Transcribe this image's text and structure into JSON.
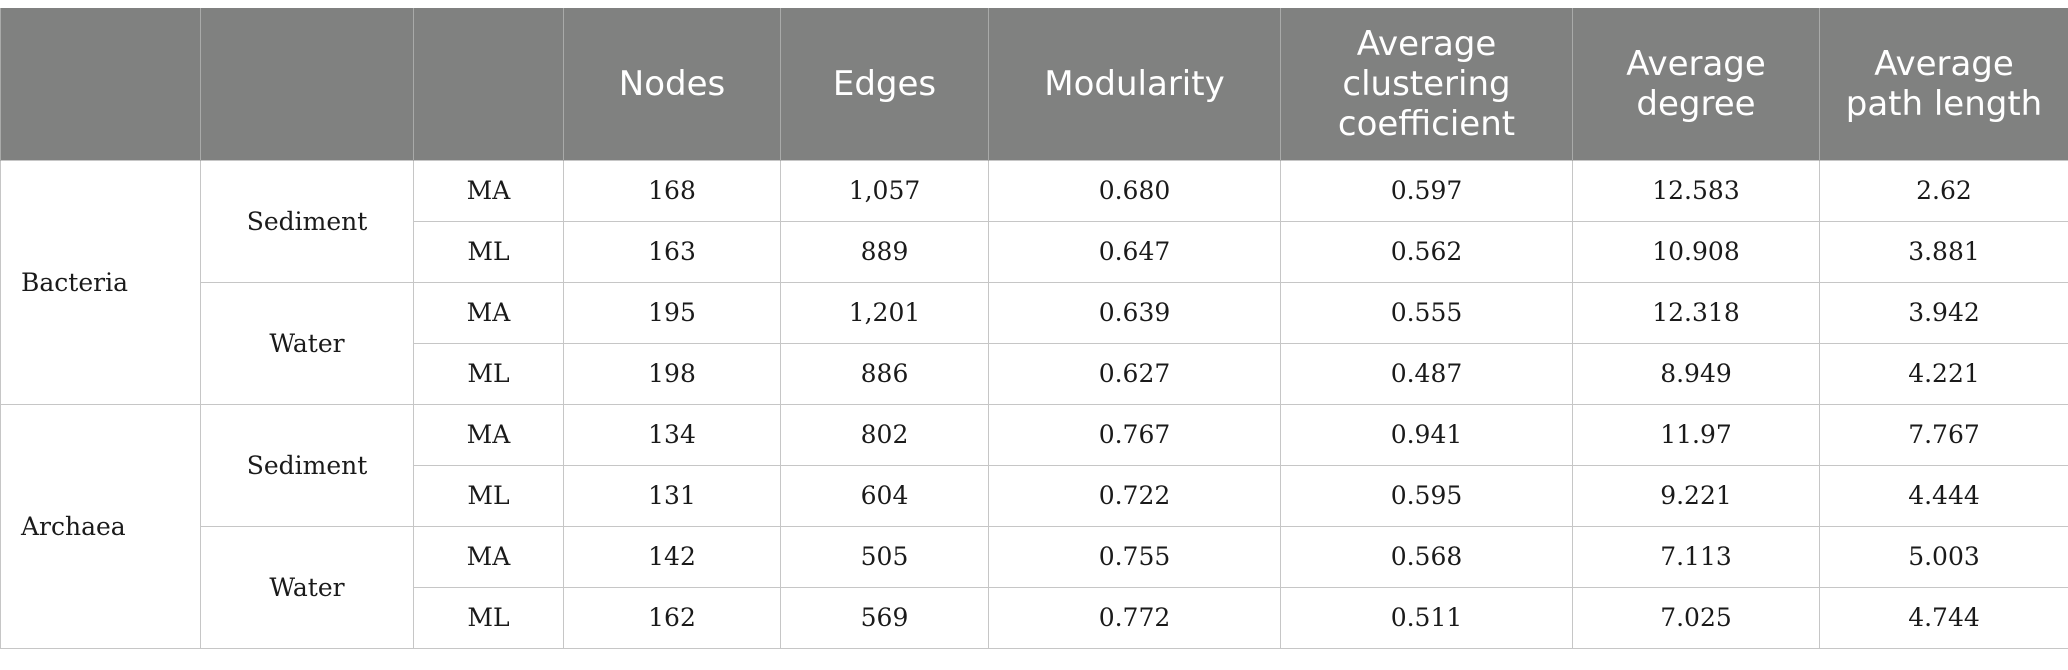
{
  "table": {
    "headers": [
      "",
      "",
      "",
      "Nodes",
      "Edges",
      "Modularity",
      "Average clustering coefficient",
      "Average degree",
      "Average path length"
    ],
    "groups": [
      {
        "domain": "Bacteria",
        "habitats": [
          {
            "habitat": "Sediment",
            "rows": [
              {
                "site": "MA",
                "nodes": "168",
                "edges": "1,057",
                "modularity": "0.680",
                "clustering": "0.597",
                "degree": "12.583",
                "path": "2.62"
              },
              {
                "site": "ML",
                "nodes": "163",
                "edges": "889",
                "modularity": "0.647",
                "clustering": "0.562",
                "degree": "10.908",
                "path": "3.881"
              }
            ]
          },
          {
            "habitat": "Water",
            "rows": [
              {
                "site": "MA",
                "nodes": "195",
                "edges": "1,201",
                "modularity": "0.639",
                "clustering": "0.555",
                "degree": "12.318",
                "path": "3.942"
              },
              {
                "site": "ML",
                "nodes": "198",
                "edges": "886",
                "modularity": "0.627",
                "clustering": "0.487",
                "degree": "8.949",
                "path": "4.221"
              }
            ]
          }
        ]
      },
      {
        "domain": "Archaea",
        "habitats": [
          {
            "habitat": "Sediment",
            "rows": [
              {
                "site": "MA",
                "nodes": "134",
                "edges": "802",
                "modularity": "0.767",
                "clustering": "0.941",
                "degree": "11.97",
                "path": "7.767"
              },
              {
                "site": "ML",
                "nodes": "131",
                "edges": "604",
                "modularity": "0.722",
                "clustering": "0.595",
                "degree": "9.221",
                "path": "4.444"
              }
            ]
          },
          {
            "habitat": "Water",
            "rows": [
              {
                "site": "MA",
                "nodes": "142",
                "edges": "505",
                "modularity": "0.755",
                "clustering": "0.568",
                "degree": "7.113",
                "path": "5.003"
              },
              {
                "site": "ML",
                "nodes": "162",
                "edges": "569",
                "modularity": "0.772",
                "clustering": "0.511",
                "degree": "7.025",
                "path": "4.744"
              }
            ]
          }
        ]
      }
    ]
  }
}
